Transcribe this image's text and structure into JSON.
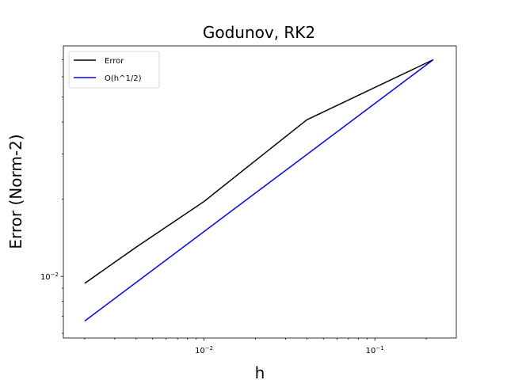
{
  "chart_data": {
    "type": "line",
    "title": "Godunov, RK2",
    "xlabel": "h",
    "ylabel": "Error (Norm-2)",
    "xscale": "log",
    "yscale": "log",
    "xlim": [
      0.0015,
      0.3
    ],
    "ylim": [
      0.00575,
      0.0792
    ],
    "xticks": [
      {
        "value": 0.01,
        "base": "10",
        "exp": "−2"
      },
      {
        "value": 0.1,
        "base": "10",
        "exp": "−1"
      }
    ],
    "yticks": [
      {
        "value": 0.01,
        "base": "10",
        "exp": "−2"
      }
    ],
    "grid": false,
    "legend_position": "top-left",
    "series": [
      {
        "name": "Error",
        "color": "#000000",
        "x": [
          0.002,
          0.004,
          0.01,
          0.02,
          0.04,
          0.22
        ],
        "y": [
          0.0094,
          0.013,
          0.0196,
          0.0283,
          0.0408,
          0.07
        ]
      },
      {
        "name": "O(h^1/2)",
        "color": "#0000ff",
        "x": [
          0.002,
          0.22
        ],
        "y": [
          0.0067,
          0.07
        ]
      }
    ]
  }
}
